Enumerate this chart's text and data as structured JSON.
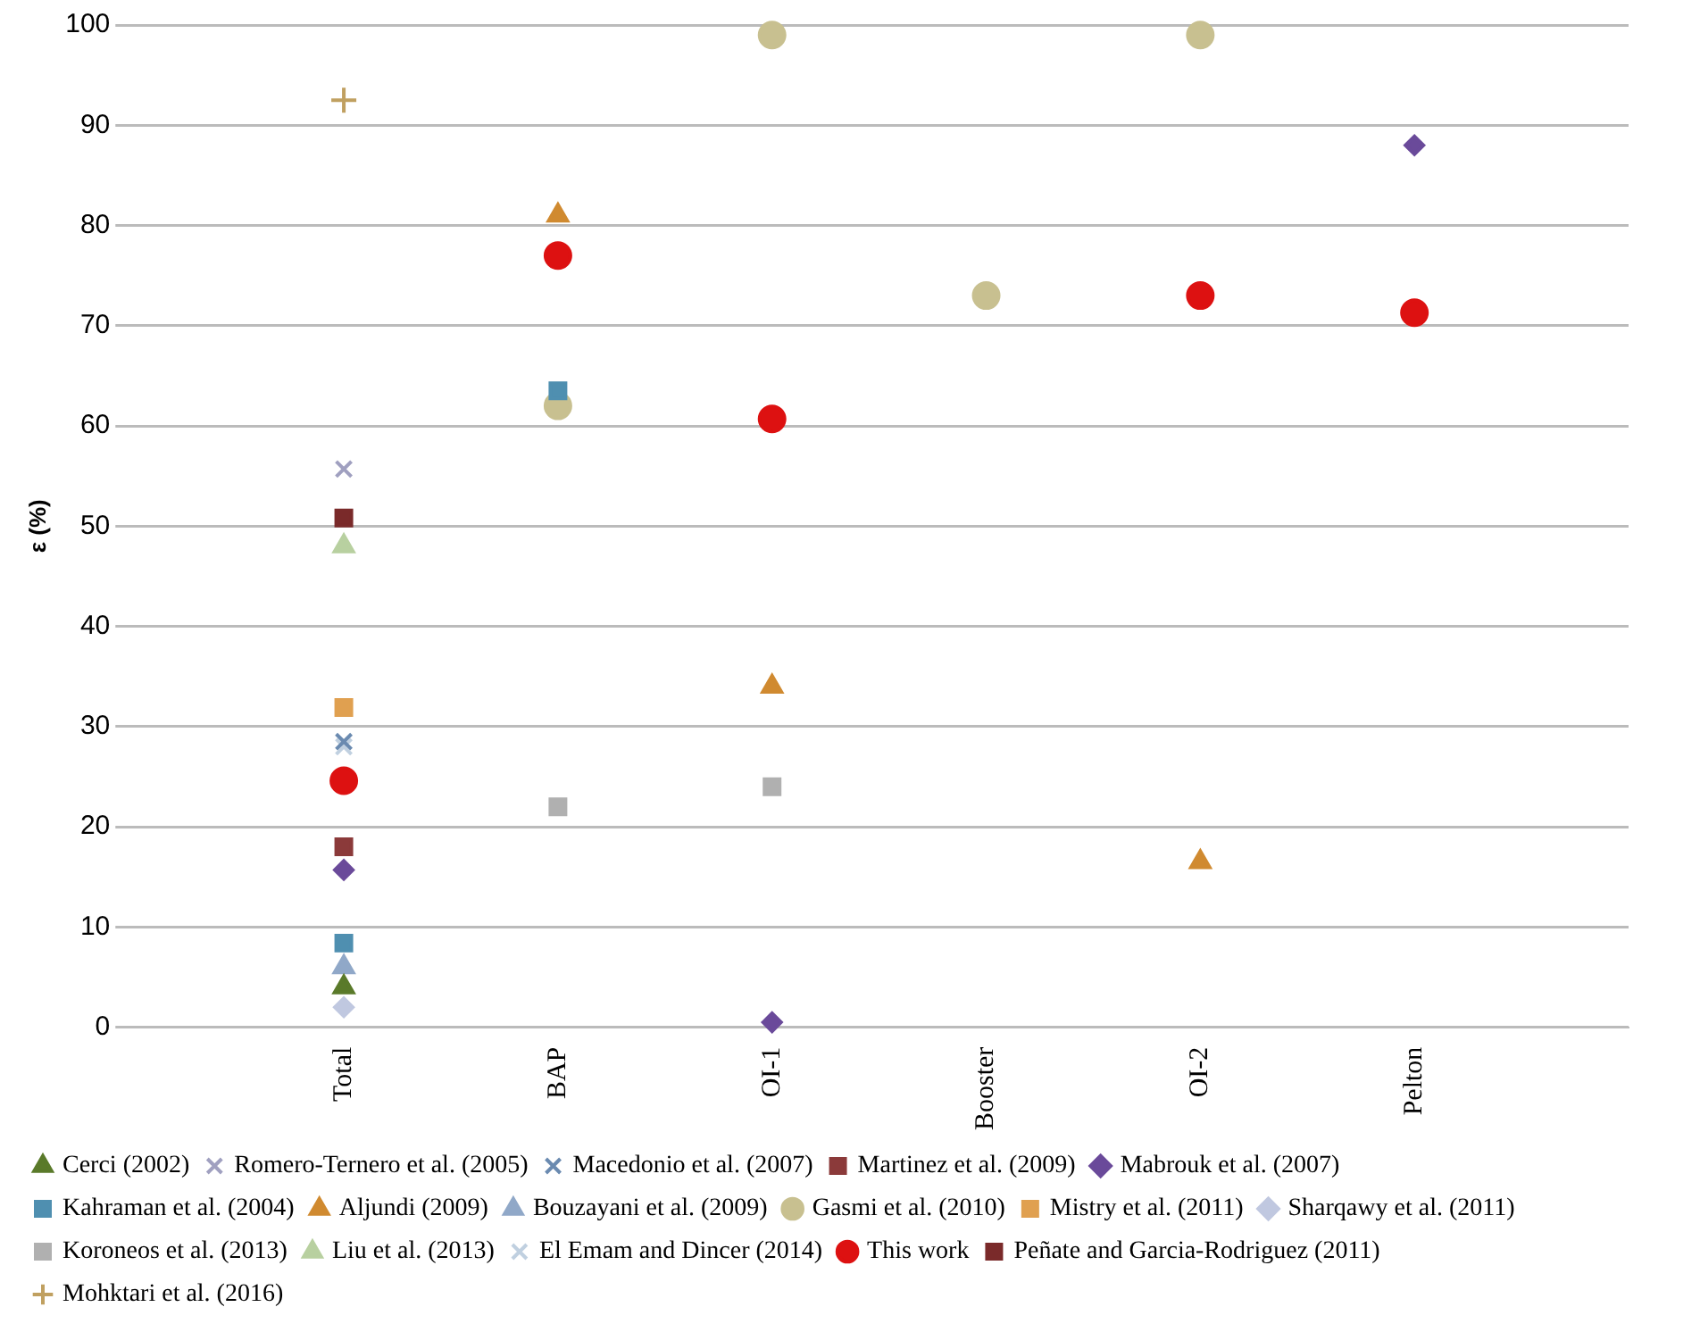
{
  "chart_data": {
    "type": "scatter",
    "ylabel": "ε (%)",
    "categories": [
      null,
      "Total",
      "BAP",
      "OI-1",
      "Booster",
      "OI-2",
      "Pelton",
      null
    ],
    "ylim": [
      0,
      100
    ],
    "yticks": [
      0,
      10,
      20,
      30,
      40,
      50,
      60,
      70,
      80,
      90,
      100
    ],
    "grid": "y",
    "legend": "bottom",
    "series": [
      {
        "name": "Cerci (2002)",
        "color": "#5a7a2a",
        "marker": "triangle",
        "values": [
          null,
          4,
          null,
          null,
          null,
          null,
          null,
          null
        ]
      },
      {
        "name": "Romero-Ternero et al. (2005)",
        "color": "#a0a0c0",
        "marker": "cross",
        "values": [
          null,
          55.7,
          null,
          null,
          null,
          null,
          null,
          null
        ]
      },
      {
        "name": "Macedonio et al. (2007)",
        "color": "#6a8ab0",
        "marker": "cross",
        "values": [
          null,
          28.5,
          null,
          null,
          null,
          null,
          null,
          null
        ]
      },
      {
        "name": "Martinez et al. (2009)",
        "color": "#8b3a3a",
        "marker": "square",
        "values": [
          null,
          18,
          null,
          null,
          null,
          null,
          null,
          null
        ]
      },
      {
        "name": "Mabrouk et al. (2007)",
        "color": "#6a4a9a",
        "marker": "diamond",
        "values": [
          null,
          15.7,
          null,
          0.5,
          null,
          null,
          88,
          null
        ]
      },
      {
        "name": "Kahraman et al. (2004)",
        "color": "#4f8fb0",
        "marker": "square",
        "values": [
          null,
          8.4,
          63.5,
          null,
          null,
          null,
          null,
          null
        ]
      },
      {
        "name": "Aljundi (2009)",
        "color": "#d08a30",
        "marker": "triangle",
        "values": [
          null,
          null,
          81,
          34,
          null,
          16.5,
          null,
          null
        ]
      },
      {
        "name": "Bouzayani et al. (2009)",
        "color": "#90a8c8",
        "marker": "triangle",
        "values": [
          null,
          6,
          null,
          null,
          null,
          null,
          null,
          null
        ]
      },
      {
        "name": "Gasmi et al. (2010)",
        "color": "#c8c090",
        "marker": "circle",
        "values": [
          null,
          null,
          62,
          99,
          73,
          99,
          null,
          null
        ]
      },
      {
        "name": "Mistry et al. (2011)",
        "color": "#e0a050",
        "marker": "square",
        "values": [
          null,
          31.9,
          null,
          null,
          null,
          null,
          null,
          null
        ]
      },
      {
        "name": "Sharqawy et al. (2011)",
        "color": "#c0c8e0",
        "marker": "diamond",
        "values": [
          null,
          2,
          null,
          null,
          null,
          null,
          null,
          null
        ]
      },
      {
        "name": "Koroneos et al. (2013)",
        "color": "#b0b0b0",
        "marker": "square",
        "values": [
          null,
          null,
          22,
          24,
          null,
          null,
          null,
          null
        ]
      },
      {
        "name": "Liu et al. (2013)",
        "color": "#b8d0a0",
        "marker": "triangle",
        "values": [
          null,
          48,
          null,
          null,
          null,
          null,
          null,
          null
        ]
      },
      {
        "name": "El Emam and Dincer (2014)",
        "color": "#c0d0e0",
        "marker": "cross",
        "values": [
          null,
          28,
          null,
          null,
          null,
          null,
          null,
          null
        ]
      },
      {
        "name": "This work",
        "color": "#dd1111",
        "marker": "circle",
        "values": [
          null,
          24.6,
          77,
          60.7,
          null,
          73,
          71.3,
          null
        ]
      },
      {
        "name": "Peñate and Garcia-Rodriguez (2011)",
        "color": "#7a2a2a",
        "marker": "square",
        "values": [
          null,
          50.8,
          null,
          null,
          null,
          null,
          null,
          null
        ]
      },
      {
        "name": "Mohktari et al. (2016)",
        "color": "#c0a060",
        "marker": "plus",
        "values": [
          null,
          92.5,
          null,
          null,
          null,
          null,
          null,
          null
        ]
      }
    ]
  }
}
